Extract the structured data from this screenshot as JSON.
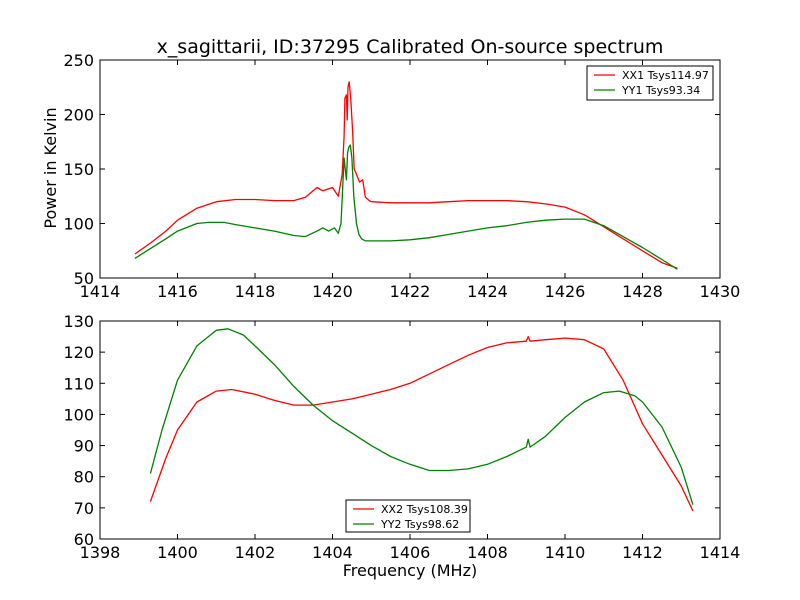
{
  "chart_data": [
    {
      "type": "line",
      "title": "x_sagittarii, ID:37295 Calibrated On-source spectrum",
      "xlabel": "",
      "ylabel": "Power in Kelvin",
      "xlim": [
        1414,
        1430
      ],
      "ylim": [
        50,
        250
      ],
      "xticks": [
        1414,
        1416,
        1418,
        1420,
        1422,
        1424,
        1426,
        1428,
        1430
      ],
      "yticks": [
        50,
        100,
        150,
        200,
        250
      ],
      "legend_position": "top-right",
      "series": [
        {
          "name": "XX1 Tsys114.97",
          "color": "#ff0000",
          "x": [
            1414.9,
            1415.3,
            1415.7,
            1416.0,
            1416.5,
            1417.0,
            1417.5,
            1418.0,
            1418.5,
            1419.0,
            1419.3,
            1419.6,
            1419.75,
            1420.0,
            1420.15,
            1420.25,
            1420.3,
            1420.32,
            1420.36,
            1420.38,
            1420.4,
            1420.43,
            1420.47,
            1420.52,
            1420.56,
            1420.62,
            1420.7,
            1420.78,
            1420.85,
            1420.95,
            1421.0,
            1421.5,
            1422.0,
            1422.5,
            1423.0,
            1423.5,
            1424.0,
            1424.5,
            1425.0,
            1425.5,
            1426.0,
            1426.5,
            1427.0,
            1427.5,
            1428.0,
            1428.5,
            1428.9
          ],
          "y": [
            72,
            82,
            93,
            103,
            114,
            120,
            122,
            122,
            121,
            121,
            124,
            133,
            130,
            133,
            125,
            145,
            180,
            215,
            218,
            195,
            225,
            230,
            215,
            185,
            150,
            145,
            138,
            140,
            124,
            121,
            120,
            119,
            119,
            119,
            120,
            121,
            121,
            121,
            120,
            118,
            115,
            108,
            97,
            86,
            75,
            64,
            59
          ]
        },
        {
          "name": "YY1 Tsys93.34",
          "color": "#008000",
          "x": [
            1414.9,
            1415.3,
            1415.7,
            1416.0,
            1416.5,
            1416.8,
            1417.2,
            1417.5,
            1418.0,
            1418.5,
            1419.0,
            1419.3,
            1419.6,
            1419.75,
            1419.9,
            1420.05,
            1420.15,
            1420.22,
            1420.3,
            1420.36,
            1420.39,
            1420.42,
            1420.46,
            1420.5,
            1420.55,
            1420.62,
            1420.68,
            1420.75,
            1420.85,
            1421.0,
            1421.5,
            1422.0,
            1422.5,
            1423.0,
            1423.5,
            1424.0,
            1424.5,
            1425.0,
            1425.5,
            1426.0,
            1426.5,
            1427.0,
            1427.5,
            1428.0,
            1428.5,
            1428.9
          ],
          "y": [
            68,
            77,
            86,
            93,
            100,
            101,
            101,
            99,
            96,
            93,
            89,
            88,
            93,
            96,
            93,
            96,
            91,
            100,
            160,
            140,
            165,
            170,
            172,
            160,
            125,
            100,
            90,
            86,
            84,
            84,
            84,
            85,
            87,
            90,
            93,
            96,
            98,
            101,
            103,
            104,
            104,
            98,
            88,
            78,
            67,
            58
          ]
        }
      ]
    },
    {
      "type": "line",
      "title": "",
      "xlabel": "Frequency (MHz)",
      "ylabel": "",
      "xlim": [
        1398,
        1414
      ],
      "ylim": [
        60,
        130
      ],
      "xticks": [
        1398,
        1400,
        1402,
        1404,
        1406,
        1408,
        1410,
        1412,
        1414
      ],
      "yticks": [
        60,
        70,
        80,
        90,
        100,
        110,
        120,
        130
      ],
      "legend_position": "lower-center",
      "series": [
        {
          "name": "XX2 Tsys108.39",
          "color": "#ff0000",
          "x": [
            1399.3,
            1399.7,
            1400.0,
            1400.5,
            1401.0,
            1401.4,
            1402.0,
            1402.5,
            1403.0,
            1403.5,
            1404.0,
            1404.5,
            1405.0,
            1405.5,
            1406.0,
            1406.5,
            1407.0,
            1407.5,
            1408.0,
            1408.5,
            1409.0,
            1409.05,
            1409.1,
            1409.5,
            1410.0,
            1410.5,
            1411.0,
            1411.5,
            1412.0,
            1412.5,
            1413.0,
            1413.3
          ],
          "y": [
            72,
            86,
            95,
            104,
            107.5,
            108,
            106.5,
            104.5,
            103,
            103,
            104,
            105,
            106.5,
            108,
            110,
            113,
            116,
            119,
            121.5,
            123,
            123.5,
            125,
            123.5,
            124,
            124.5,
            124,
            121,
            111,
            97,
            87,
            77,
            69
          ]
        },
        {
          "name": "YY2 Tsys98.62",
          "color": "#008000",
          "x": [
            1399.3,
            1399.6,
            1400.0,
            1400.5,
            1401.0,
            1401.3,
            1401.7,
            1402.0,
            1402.5,
            1403.0,
            1403.5,
            1404.0,
            1404.5,
            1405.0,
            1405.5,
            1406.0,
            1406.5,
            1407.0,
            1407.5,
            1408.0,
            1408.5,
            1409.0,
            1409.05,
            1409.1,
            1409.5,
            1410.0,
            1410.5,
            1411.0,
            1411.4,
            1411.8,
            1412.0,
            1412.5,
            1413.0,
            1413.3
          ],
          "y": [
            81,
            95,
            111,
            122,
            127,
            127.5,
            125.5,
            122,
            116,
            109,
            103,
            98,
            94,
            90,
            86.5,
            84,
            82,
            82,
            82.5,
            84,
            86.5,
            89.5,
            92,
            89.5,
            93,
            99,
            104,
            107,
            107.5,
            106,
            104,
            96,
            83,
            71
          ]
        }
      ]
    }
  ]
}
